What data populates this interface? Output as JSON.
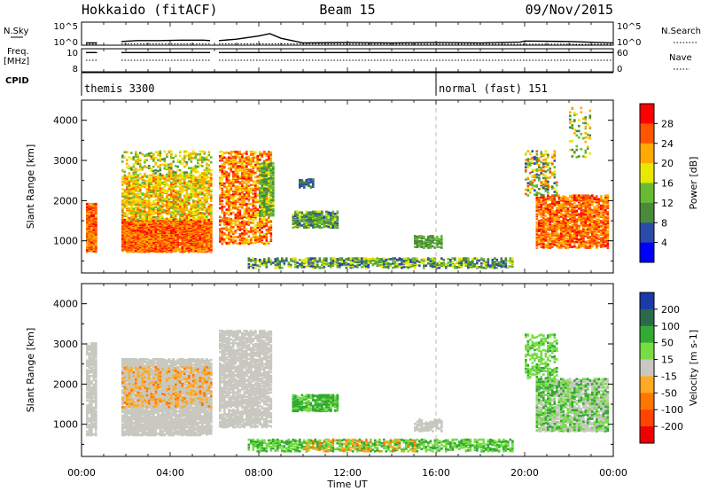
{
  "header": {
    "station": "Hokkaido (fitACF)",
    "beam": "Beam 15",
    "date": "09/Nov/2015"
  },
  "side_labels": {
    "nsky": "N.Sky",
    "nsearch": "N.Search",
    "freq_line1": "Freq.",
    "freq_line2": "[MHz]",
    "nave": "Nave",
    "cpid": "CPID"
  },
  "cpid_segments": [
    {
      "label": "themis 3300",
      "start": 0,
      "end": 16
    },
    {
      "label": "normal (fast) 151",
      "start": 16,
      "end": 24
    }
  ],
  "xaxis": {
    "label": "Time UT",
    "ticks": [
      "00:00",
      "04:00",
      "08:00",
      "12:00",
      "16:00",
      "20:00",
      "00:00"
    ]
  },
  "chart_data": [
    {
      "type": "line",
      "panel": "noise",
      "left_ticks": [
        "10^5",
        "10^0"
      ],
      "right_ticks": [
        "10^5",
        "10^0"
      ],
      "series": [
        {
          "name": "N.Sky",
          "style": "solid",
          "x": [
            0.2,
            0.7,
            1.8,
            2.5,
            3.5,
            4.5,
            5.5,
            5.8,
            6.2,
            7.0,
            8.0,
            8.5,
            9.0,
            10,
            12,
            14,
            16,
            18,
            19.8,
            20,
            22,
            24
          ],
          "values": [
            0.5,
            0.5,
            0.8,
            1.0,
            1.0,
            1.1,
            1.1,
            1.0,
            1.0,
            1.3,
            2.0,
            2.5,
            1.5,
            0.5,
            0.6,
            0.5,
            0.6,
            0.5,
            0.7,
            0.9,
            0.8,
            0.5
          ]
        },
        {
          "name": "N.Search",
          "style": "dotted",
          "x": [
            0.2,
            0.7,
            1.8,
            5.8,
            6.2,
            24
          ],
          "values": [
            0.2,
            0.2,
            0.3,
            0.3,
            0.3,
            0.2
          ]
        }
      ],
      "gaps": [
        [
          0.7,
          1.8
        ],
        [
          5.8,
          6.2
        ]
      ]
    },
    {
      "type": "line",
      "panel": "frequency",
      "left_ticks": [
        "10",
        "8"
      ],
      "right_ticks": [
        "60",
        "0"
      ],
      "series": [
        {
          "name": "Freq.",
          "style": "solid",
          "x": [
            0.2,
            0.7,
            1.8,
            5.8,
            6.2,
            24
          ],
          "values": [
            10,
            10,
            10,
            10,
            10,
            10
          ]
        },
        {
          "name": "Nave",
          "style": "dotted",
          "x": [
            0.2,
            0.7,
            1.8,
            5.8,
            6.2,
            24
          ],
          "values": [
            30,
            30,
            30,
            30,
            30,
            30
          ]
        }
      ],
      "gaps": [
        [
          0.7,
          1.8
        ],
        [
          5.8,
          6.2
        ]
      ]
    },
    {
      "type": "heatmap",
      "panel": "power",
      "ylabel": "Slant Range [km]",
      "yticks": [
        1000,
        2000,
        3000,
        4000
      ],
      "ylim": [
        200,
        4500
      ],
      "xlim": [
        0,
        24
      ],
      "colorbar": {
        "label": "Power [dB]",
        "ticks": [
          4,
          8,
          12,
          16,
          20,
          24,
          28
        ],
        "colors": [
          "#0000ff",
          "#2c4aa8",
          "#4a8a3a",
          "#66bb33",
          "#e8e800",
          "#ffaa00",
          "#ff5500",
          "#ff0000"
        ]
      },
      "regions": [
        {
          "t0": 0.2,
          "t1": 0.7,
          "r0": 700,
          "r1": 1900,
          "v0": 20,
          "v1": 30,
          "density": 0.75
        },
        {
          "t0": 1.8,
          "t1": 5.8,
          "r0": 700,
          "r1": 1500,
          "v0": 20,
          "v1": 30,
          "density": 0.8
        },
        {
          "t0": 1.8,
          "t1": 5.8,
          "r0": 1500,
          "r1": 2600,
          "v0": 14,
          "v1": 26,
          "density": 0.45
        },
        {
          "t0": 1.8,
          "t1": 5.8,
          "r0": 2600,
          "r1": 3200,
          "v0": 10,
          "v1": 24,
          "density": 0.2
        },
        {
          "t0": 6.2,
          "t1": 8.5,
          "r0": 900,
          "r1": 3200,
          "v0": 18,
          "v1": 30,
          "density": 0.35
        },
        {
          "t0": 8.0,
          "t1": 8.6,
          "r0": 1600,
          "r1": 2900,
          "v0": 8,
          "v1": 18,
          "density": 0.5
        },
        {
          "t0": 9.5,
          "t1": 11.5,
          "r0": 1300,
          "r1": 1700,
          "v0": 6,
          "v1": 18,
          "density": 0.55
        },
        {
          "t0": 9.8,
          "t1": 10.4,
          "r0": 2300,
          "r1": 2500,
          "v0": 4,
          "v1": 10,
          "density": 0.5
        },
        {
          "t0": 7.5,
          "t1": 19.5,
          "r0": 300,
          "r1": 550,
          "v0": 4,
          "v1": 20,
          "density": 0.35
        },
        {
          "t0": 15.0,
          "t1": 16.3,
          "r0": 800,
          "r1": 1100,
          "v0": 8,
          "v1": 16,
          "density": 0.45
        },
        {
          "t0": 20.5,
          "t1": 23.8,
          "r0": 800,
          "r1": 2100,
          "v0": 20,
          "v1": 30,
          "density": 0.5
        },
        {
          "t0": 20.0,
          "t1": 21.5,
          "r0": 2100,
          "r1": 3200,
          "v0": 6,
          "v1": 28,
          "density": 0.2
        },
        {
          "t0": 22.0,
          "t1": 23.0,
          "r0": 3000,
          "r1": 4300,
          "v0": 8,
          "v1": 24,
          "density": 0.08
        }
      ]
    },
    {
      "type": "heatmap",
      "panel": "velocity",
      "ylabel": "Slant Range [km]",
      "yticks": [
        1000,
        2000,
        3000,
        4000
      ],
      "ylim": [
        200,
        4500
      ],
      "xlim": [
        0,
        24
      ],
      "colorbar": {
        "label": "Velocity [m s-1]",
        "ticks": [
          200,
          100,
          50,
          15,
          -15,
          -50,
          -100,
          -200
        ],
        "colors": [
          "#1a3aa8",
          "#2a6a4a",
          "#33aa33",
          "#77dd44",
          "#c8c8c0",
          "#ffaa22",
          "#ff7700",
          "#ff4400",
          "#ee0000"
        ]
      },
      "regions": [
        {
          "t0": 0.2,
          "t1": 0.7,
          "r0": 700,
          "r1": 3000,
          "v0": -15,
          "v1": 15,
          "density": 0.5
        },
        {
          "t0": 1.8,
          "t1": 5.8,
          "r0": 700,
          "r1": 2600,
          "v0": -15,
          "v1": 15,
          "density": 0.65
        },
        {
          "t0": 1.8,
          "t1": 5.8,
          "r0": 1400,
          "r1": 2400,
          "v0": -60,
          "v1": -20,
          "density": 0.15
        },
        {
          "t0": 6.2,
          "t1": 8.5,
          "r0": 900,
          "r1": 3300,
          "v0": -15,
          "v1": 15,
          "density": 0.5
        },
        {
          "t0": 9.5,
          "t1": 11.5,
          "r0": 1300,
          "r1": 1700,
          "v0": 30,
          "v1": 90,
          "density": 0.55
        },
        {
          "t0": 7.5,
          "t1": 19.5,
          "r0": 300,
          "r1": 600,
          "v0": 15,
          "v1": 80,
          "density": 0.35
        },
        {
          "t0": 10.0,
          "t1": 15.0,
          "r0": 300,
          "r1": 600,
          "v0": -60,
          "v1": -20,
          "density": 0.12
        },
        {
          "t0": 15.0,
          "t1": 16.3,
          "r0": 800,
          "r1": 1100,
          "v0": -15,
          "v1": 15,
          "density": 0.45
        },
        {
          "t0": 20.5,
          "t1": 23.8,
          "r0": 800,
          "r1": 2100,
          "v0": -15,
          "v1": 15,
          "density": 0.45
        },
        {
          "t0": 20.5,
          "t1": 23.8,
          "r0": 800,
          "r1": 2100,
          "v0": 20,
          "v1": 80,
          "density": 0.2
        },
        {
          "t0": 20.0,
          "t1": 21.5,
          "r0": 2100,
          "r1": 3200,
          "v0": 15,
          "v1": 60,
          "density": 0.25
        }
      ]
    }
  ]
}
